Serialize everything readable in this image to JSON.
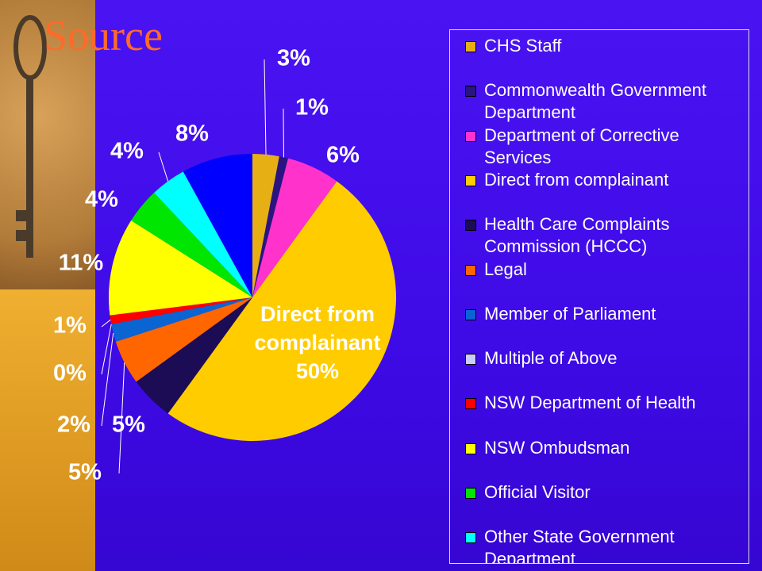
{
  "chart_data": {
    "type": "pie",
    "title": "Source",
    "categories": [
      "CHS Staff",
      "Commonwealth Government Department",
      "Department of Corrective Services",
      "Direct from complainant",
      "Health Care Complaints Commission (HCCC)",
      "Legal",
      "Member of Parliament",
      "Multiple of Above",
      "NSW Department of Health",
      "NSW Ombudsman",
      "Official Visitor",
      "Other State Government Department",
      null
    ],
    "values": [
      3,
      1,
      6,
      50,
      5,
      5,
      2,
      0,
      1,
      11,
      4,
      4,
      8
    ],
    "value_labels": [
      "3%",
      "1%",
      "6%",
      "50%",
      "5%",
      "5%",
      "2%",
      "0%",
      "1%",
      "11%",
      "4%",
      "4%",
      "8%"
    ],
    "colors": [
      "#e6b015",
      "#2a1480",
      "#ff33cc",
      "#ffcc00",
      "#1c0c55",
      "#ff6600",
      "#0a64d2",
      "#ccccff",
      "#ff0000",
      "#ffff00",
      "#00e600",
      "#00ffff",
      "#0000ff"
    ],
    "legend": "right"
  }
}
